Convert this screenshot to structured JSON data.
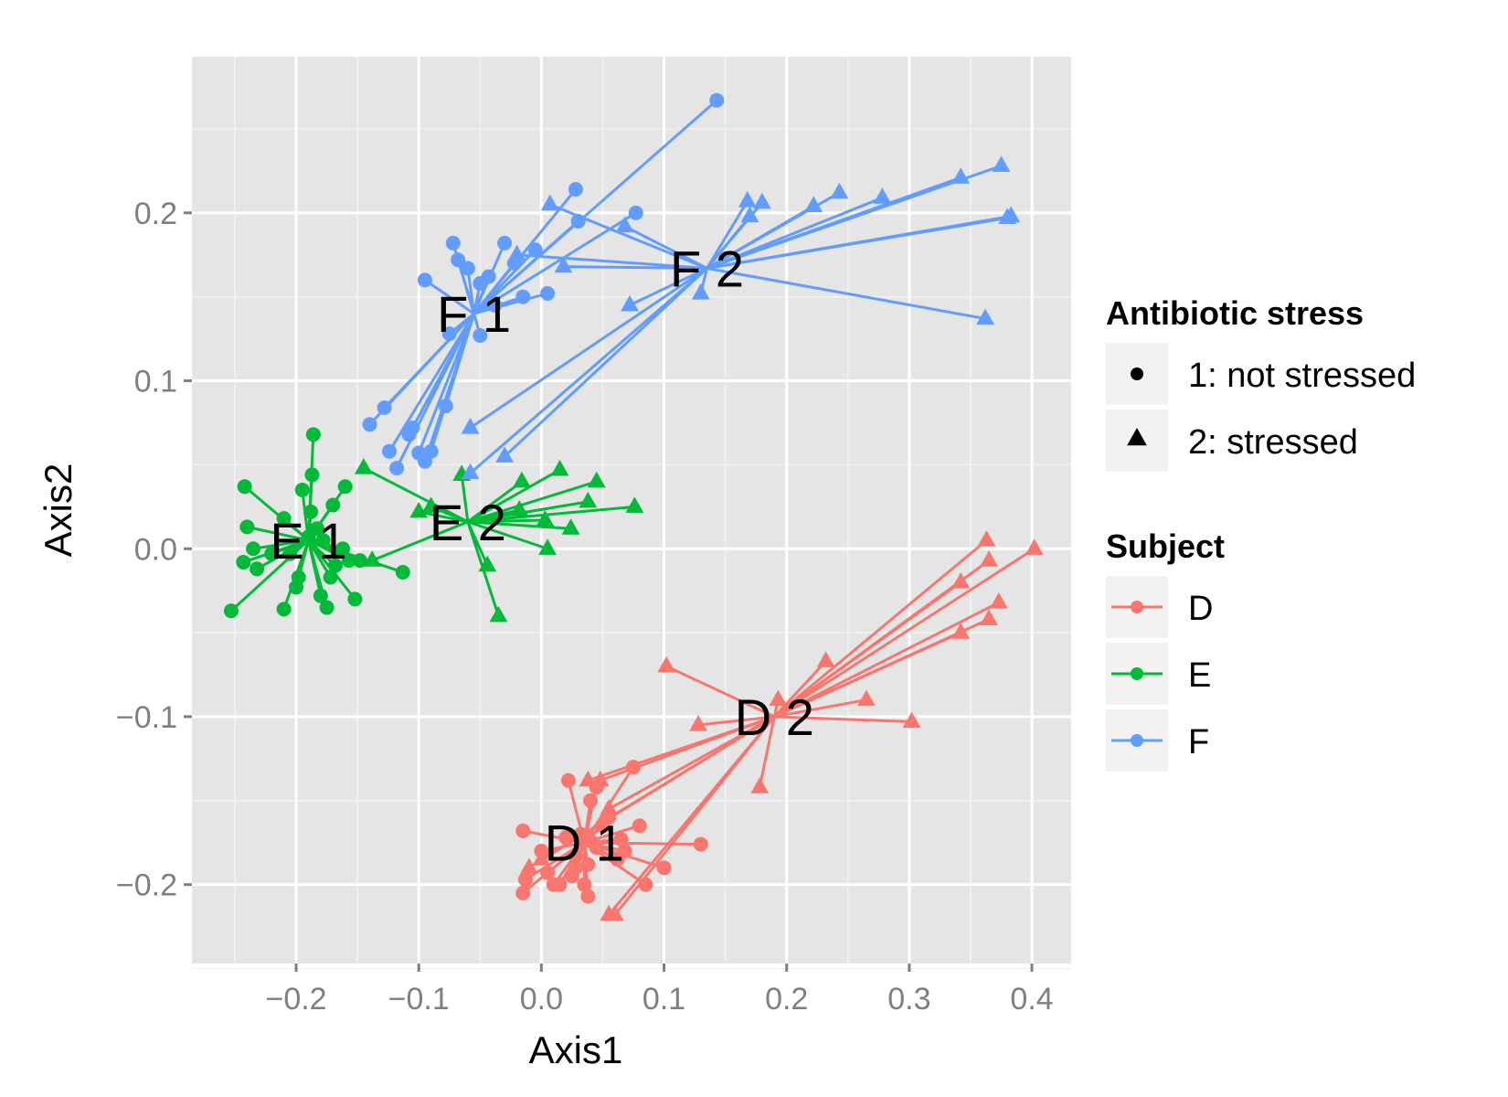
{
  "chart_data": {
    "type": "scatter",
    "xlabel": "Axis1",
    "ylabel": "Axis2",
    "xlim": [
      -0.285,
      0.432
    ],
    "ylim": [
      -0.247,
      0.293
    ],
    "x_ticks": [
      -0.2,
      -0.1,
      0.0,
      0.1,
      0.2,
      0.3,
      0.4
    ],
    "x_tick_labels": [
      "−0.2",
      "−0.1",
      "0.0",
      "0.1",
      "0.2",
      "0.3",
      "0.4"
    ],
    "y_ticks": [
      -0.2,
      -0.1,
      0.0,
      0.1,
      0.2
    ],
    "y_tick_labels": [
      "−0.2",
      "−0.1",
      "0.0",
      "0.1",
      "0.2"
    ],
    "grid": true,
    "background": "#e5e5e5",
    "legend_position": "right",
    "legend_shape": {
      "title": "Antibiotic stress",
      "entries": [
        {
          "label": "1: not stressed",
          "shape": "circle"
        },
        {
          "label": "2: stressed",
          "shape": "triangle"
        }
      ]
    },
    "legend_color": {
      "title": "Subject",
      "entries": [
        {
          "label": "D",
          "color": "#f8766d"
        },
        {
          "label": "E",
          "color": "#00ba38"
        },
        {
          "label": "F",
          "color": "#619cff"
        }
      ]
    },
    "series": [
      {
        "subject": "D",
        "stress": 1,
        "label": "D 1",
        "color": "#f8766d",
        "centroid": [
          0.035,
          -0.175
        ],
        "points": [
          [
            -0.015,
            -0.168
          ],
          [
            -0.015,
            -0.205
          ],
          [
            -0.013,
            -0.197
          ],
          [
            0.0,
            -0.18
          ],
          [
            0.005,
            -0.193
          ],
          [
            0.01,
            -0.2
          ],
          [
            0.02,
            -0.172
          ],
          [
            0.022,
            -0.138
          ],
          [
            0.025,
            -0.195
          ],
          [
            0.028,
            -0.183
          ],
          [
            0.032,
            -0.17
          ],
          [
            0.035,
            -0.2
          ],
          [
            0.038,
            -0.188
          ],
          [
            0.04,
            -0.15
          ],
          [
            0.04,
            -0.174
          ],
          [
            0.038,
            -0.207
          ],
          [
            0.045,
            -0.178
          ],
          [
            0.05,
            -0.165
          ],
          [
            0.055,
            -0.16
          ],
          [
            0.062,
            -0.185
          ],
          [
            0.065,
            -0.173
          ],
          [
            0.068,
            -0.18
          ],
          [
            0.075,
            -0.13
          ],
          [
            0.08,
            -0.165
          ],
          [
            0.085,
            -0.2
          ],
          [
            0.1,
            -0.19
          ],
          [
            0.13,
            -0.176
          ],
          [
            0.045,
            -0.142
          ],
          [
            0.028,
            -0.19
          ],
          [
            0.015,
            -0.2
          ]
        ]
      },
      {
        "subject": "D",
        "stress": 2,
        "label": "D 2",
        "color": "#f8766d",
        "centroid": [
          0.19,
          -0.1
        ],
        "points": [
          [
            -0.01,
            -0.19
          ],
          [
            0.0,
            -0.185
          ],
          [
            0.038,
            -0.138
          ],
          [
            0.048,
            -0.138
          ],
          [
            0.055,
            -0.155
          ],
          [
            0.055,
            -0.218
          ],
          [
            0.06,
            -0.218
          ],
          [
            0.102,
            -0.07
          ],
          [
            0.128,
            -0.105
          ],
          [
            0.178,
            -0.142
          ],
          [
            0.193,
            -0.09
          ],
          [
            0.232,
            -0.067
          ],
          [
            0.265,
            -0.09
          ],
          [
            0.302,
            -0.103
          ],
          [
            0.342,
            -0.05
          ],
          [
            0.342,
            -0.02
          ],
          [
            0.363,
            0.005
          ],
          [
            0.365,
            -0.007
          ],
          [
            0.365,
            -0.042
          ],
          [
            0.373,
            -0.032
          ],
          [
            0.402,
            0.0
          ]
        ]
      },
      {
        "subject": "E",
        "stress": 1,
        "label": "E 1",
        "color": "#00ba38",
        "centroid": [
          -0.19,
          0.005
        ],
        "points": [
          [
            -0.253,
            -0.037
          ],
          [
            -0.242,
            0.037
          ],
          [
            -0.24,
            0.013
          ],
          [
            -0.243,
            -0.008
          ],
          [
            -0.235,
            -0.0
          ],
          [
            -0.232,
            -0.012
          ],
          [
            -0.22,
            -0.003
          ],
          [
            -0.21,
            0.018
          ],
          [
            -0.21,
            -0.036
          ],
          [
            -0.205,
            -0.003
          ],
          [
            -0.2,
            -0.023
          ],
          [
            -0.198,
            -0.017
          ],
          [
            -0.195,
            0.035
          ],
          [
            -0.19,
            0.007
          ],
          [
            -0.188,
            0.022
          ],
          [
            -0.187,
            0.044
          ],
          [
            -0.186,
            0.068
          ],
          [
            -0.183,
            0.012
          ],
          [
            -0.18,
            -0.028
          ],
          [
            -0.178,
            0.005
          ],
          [
            -0.175,
            -0.035
          ],
          [
            -0.172,
            -0.017
          ],
          [
            -0.17,
            0.026
          ],
          [
            -0.168,
            -0.01
          ],
          [
            -0.162,
            0.0
          ],
          [
            -0.16,
            0.037
          ],
          [
            -0.157,
            -0.007
          ],
          [
            -0.152,
            -0.03
          ],
          [
            -0.148,
            -0.007
          ],
          [
            -0.113,
            -0.014
          ]
        ]
      },
      {
        "subject": "E",
        "stress": 2,
        "label": "E 2",
        "color": "#00ba38",
        "centroid": [
          -0.06,
          0.016
        ],
        "points": [
          [
            -0.145,
            0.048
          ],
          [
            -0.138,
            -0.007
          ],
          [
            -0.1,
            0.022
          ],
          [
            -0.09,
            0.025
          ],
          [
            -0.065,
            0.044
          ],
          [
            -0.044,
            -0.01
          ],
          [
            -0.035,
            -0.04
          ],
          [
            -0.018,
            0.023
          ],
          [
            -0.016,
            0.04
          ],
          [
            0.003,
            0.017
          ],
          [
            0.005,
            -0.0
          ],
          [
            0.015,
            0.047
          ],
          [
            0.024,
            0.012
          ],
          [
            0.038,
            0.028
          ],
          [
            0.045,
            0.04
          ],
          [
            0.076,
            0.025
          ]
        ]
      },
      {
        "subject": "F",
        "stress": 1,
        "label": "F 1",
        "color": "#619cff",
        "centroid": [
          -0.055,
          0.14
        ],
        "points": [
          [
            -0.14,
            0.074
          ],
          [
            -0.128,
            0.084
          ],
          [
            -0.124,
            0.058
          ],
          [
            -0.118,
            0.048
          ],
          [
            -0.108,
            0.068
          ],
          [
            -0.105,
            0.072
          ],
          [
            -0.1,
            0.057
          ],
          [
            -0.095,
            0.052
          ],
          [
            -0.09,
            0.058
          ],
          [
            -0.078,
            0.085
          ],
          [
            -0.075,
            0.128
          ],
          [
            -0.072,
            0.182
          ],
          [
            -0.068,
            0.172
          ],
          [
            -0.06,
            0.167
          ],
          [
            -0.05,
            0.158
          ],
          [
            -0.05,
            0.127
          ],
          [
            -0.043,
            0.162
          ],
          [
            -0.038,
            0.145
          ],
          [
            -0.03,
            0.182
          ],
          [
            -0.022,
            0.17
          ],
          [
            -0.015,
            0.15
          ],
          [
            -0.005,
            0.178
          ],
          [
            0.005,
            0.152
          ],
          [
            0.028,
            0.214
          ],
          [
            0.03,
            0.195
          ],
          [
            0.077,
            0.2
          ],
          [
            0.143,
            0.267
          ],
          [
            -0.095,
            0.16
          ]
        ]
      },
      {
        "subject": "F",
        "stress": 2,
        "label": "F 2",
        "color": "#619cff",
        "centroid": [
          0.135,
          0.167
        ],
        "points": [
          [
            -0.058,
            0.045
          ],
          [
            -0.058,
            0.072
          ],
          [
            -0.03,
            0.055
          ],
          [
            -0.02,
            0.175
          ],
          [
            0.007,
            0.205
          ],
          [
            0.018,
            0.168
          ],
          [
            0.068,
            0.192
          ],
          [
            0.072,
            0.145
          ],
          [
            0.13,
            0.152
          ],
          [
            0.168,
            0.207
          ],
          [
            0.17,
            0.198
          ],
          [
            0.18,
            0.206
          ],
          [
            0.222,
            0.204
          ],
          [
            0.243,
            0.212
          ],
          [
            0.278,
            0.209
          ],
          [
            0.342,
            0.221
          ],
          [
            0.362,
            0.137
          ],
          [
            0.375,
            0.228
          ],
          [
            0.38,
            0.197
          ],
          [
            0.383,
            0.198
          ]
        ]
      }
    ]
  }
}
